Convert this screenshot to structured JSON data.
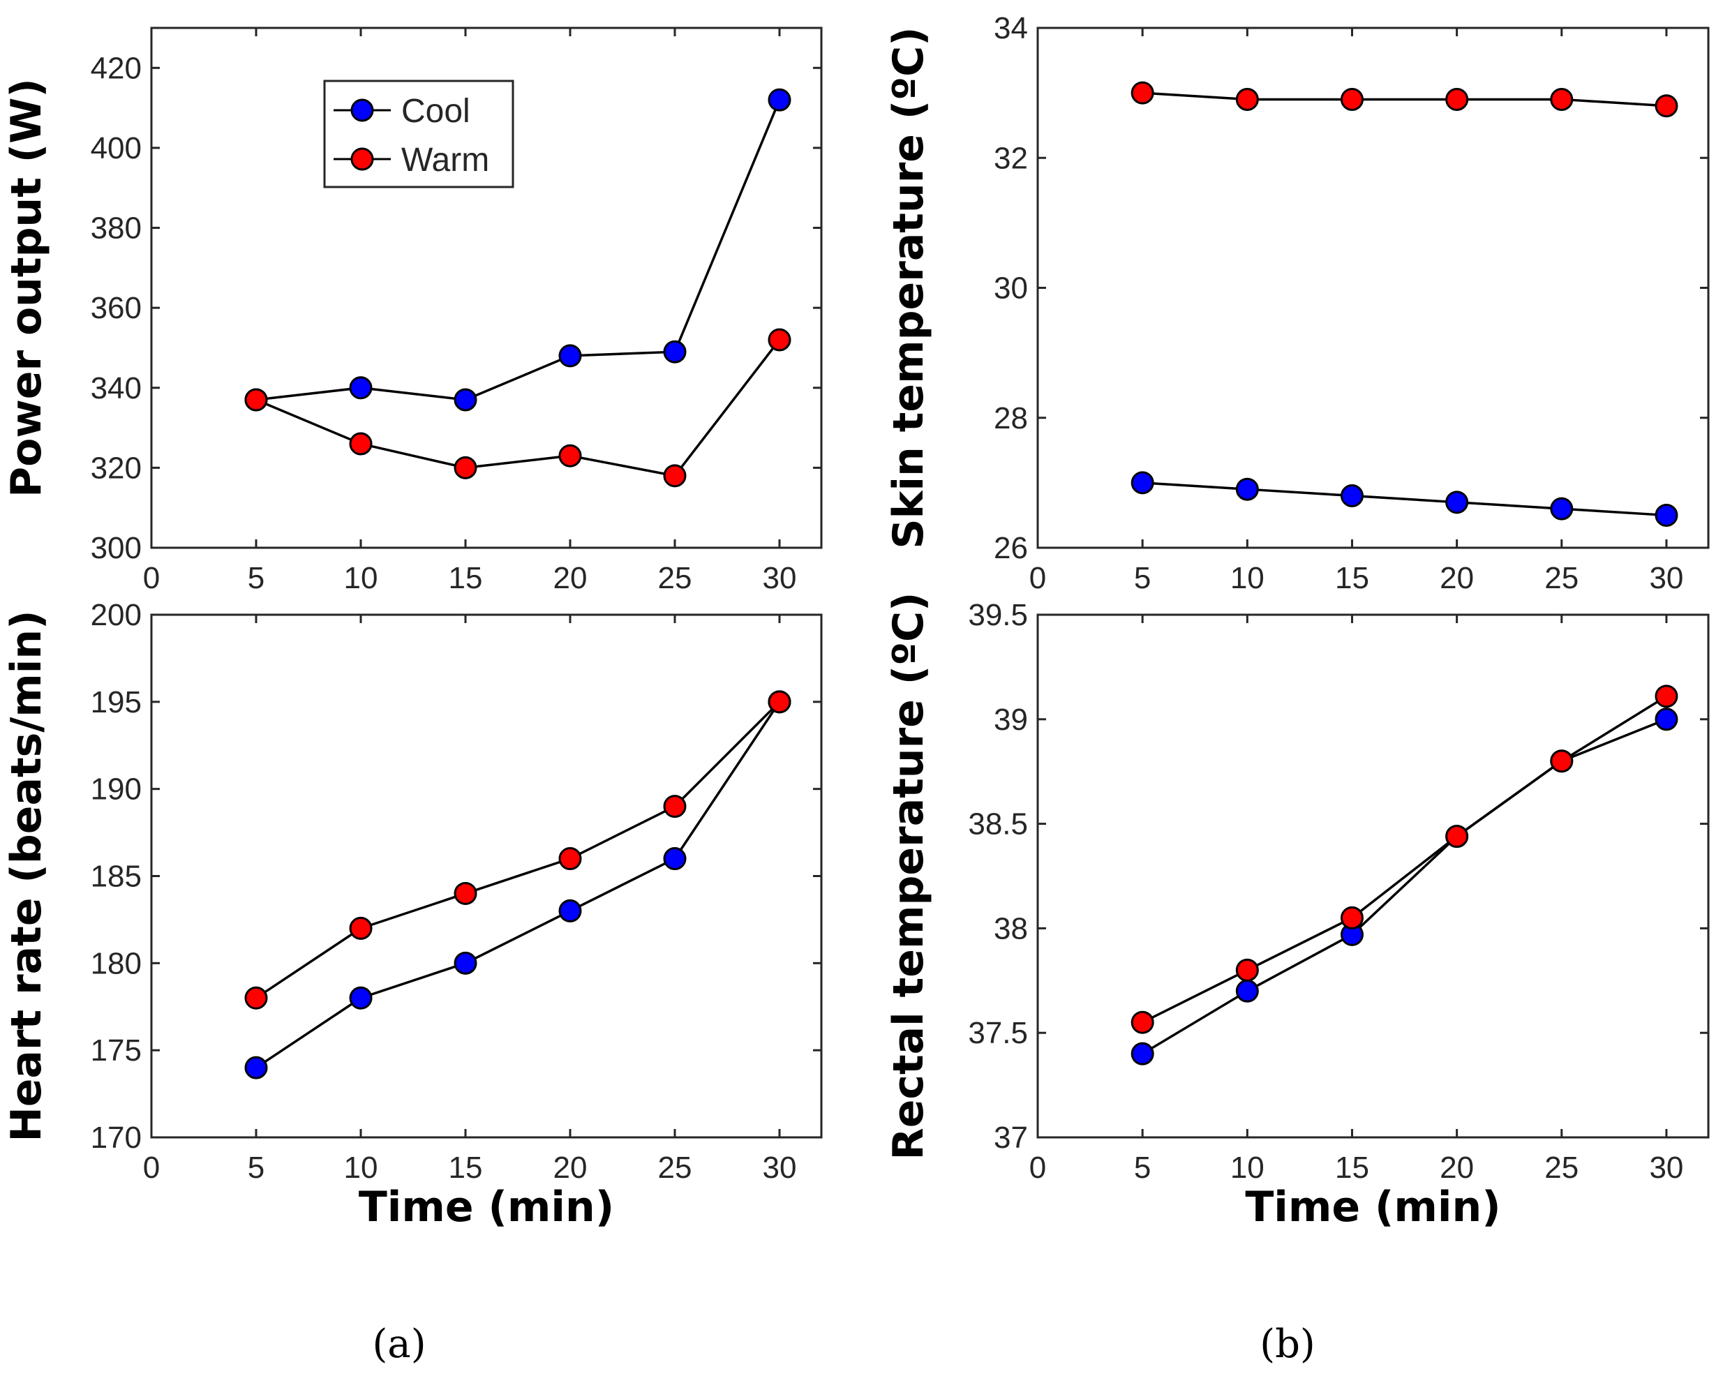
{
  "figure": {
    "panel_labels": [
      "(a)",
      "(b)"
    ],
    "legend": [
      {
        "label": "Cool",
        "color": "#0000FF"
      },
      {
        "label": "Warm",
        "color": "#FF0000"
      }
    ]
  },
  "chart_data": [
    {
      "type": "line",
      "id": "power",
      "title": "",
      "xlabel": "",
      "ylabel": "Power output (W)",
      "xlim": [
        0,
        32
      ],
      "ylim": [
        300,
        430
      ],
      "xticks": [
        0,
        5,
        10,
        15,
        20,
        25,
        30
      ],
      "yticks": [
        300,
        320,
        340,
        360,
        380,
        400,
        420
      ],
      "x": [
        5,
        10,
        15,
        20,
        25,
        30
      ],
      "series": [
        {
          "name": "Cool",
          "color": "#0000FF",
          "values": [
            337,
            340,
            337,
            348,
            349,
            412
          ]
        },
        {
          "name": "Warm",
          "color": "#FF0000",
          "values": [
            337,
            326,
            320,
            323,
            318,
            352
          ]
        }
      ],
      "legend": "top-left"
    },
    {
      "type": "line",
      "id": "skin",
      "title": "",
      "xlabel": "",
      "ylabel": "Skin temperature (ºC)",
      "xlim": [
        0,
        32
      ],
      "ylim": [
        26,
        34
      ],
      "xticks": [
        0,
        5,
        10,
        15,
        20,
        25,
        30
      ],
      "yticks": [
        26,
        28,
        30,
        32,
        34
      ],
      "x": [
        5,
        10,
        15,
        20,
        25,
        30
      ],
      "series": [
        {
          "name": "Cool",
          "color": "#0000FF",
          "values": [
            27.0,
            26.9,
            26.8,
            26.7,
            26.6,
            26.5
          ]
        },
        {
          "name": "Warm",
          "color": "#FF0000",
          "values": [
            33.0,
            32.9,
            32.9,
            32.9,
            32.9,
            32.8
          ]
        }
      ]
    },
    {
      "type": "line",
      "id": "heart",
      "title": "",
      "xlabel": "Time (min)",
      "ylabel": "Heart rate (beats/min)",
      "xlim": [
        0,
        32
      ],
      "ylim": [
        170,
        200
      ],
      "xticks": [
        0,
        5,
        10,
        15,
        20,
        25,
        30
      ],
      "yticks": [
        170,
        175,
        180,
        185,
        190,
        195,
        200
      ],
      "x": [
        5,
        10,
        15,
        20,
        25,
        30
      ],
      "series": [
        {
          "name": "Cool",
          "color": "#0000FF",
          "values": [
            174,
            178,
            180,
            183,
            186,
            195
          ]
        },
        {
          "name": "Warm",
          "color": "#FF0000",
          "values": [
            178,
            182,
            184,
            186,
            189,
            195
          ]
        }
      ]
    },
    {
      "type": "line",
      "id": "rectal",
      "title": "",
      "xlabel": "Time (min)",
      "ylabel": "Rectal temperature (ºC)",
      "xlim": [
        0,
        32
      ],
      "ylim": [
        37,
        39.5
      ],
      "xticks": [
        0,
        5,
        10,
        15,
        20,
        25,
        30
      ],
      "yticks": [
        37,
        37.5,
        38,
        38.5,
        39,
        39.5
      ],
      "x": [
        5,
        10,
        15,
        20,
        25,
        30
      ],
      "series": [
        {
          "name": "Cool",
          "color": "#0000FF",
          "values": [
            37.4,
            37.7,
            37.97,
            38.44,
            38.8,
            39.0
          ]
        },
        {
          "name": "Warm",
          "color": "#FF0000",
          "values": [
            37.55,
            37.8,
            38.05,
            38.44,
            38.8,
            39.11
          ]
        }
      ]
    }
  ]
}
